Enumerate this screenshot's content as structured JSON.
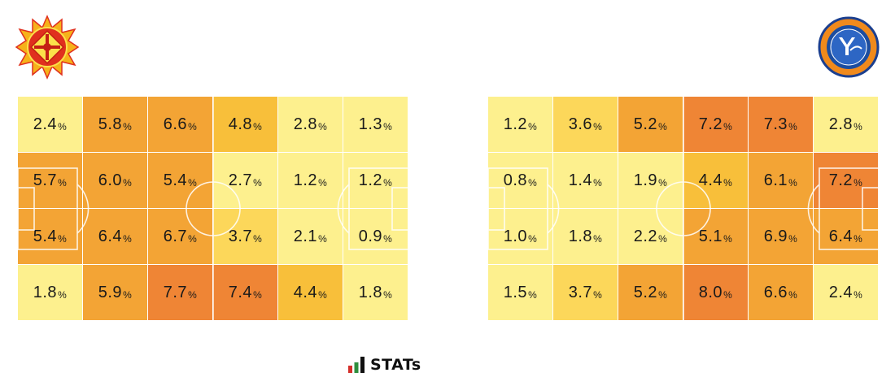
{
  "chart_data": [
    {
      "type": "heatmap",
      "team": "left",
      "unit": "%",
      "rows": 4,
      "cols": 6,
      "values": [
        [
          2.4,
          5.8,
          6.6,
          4.8,
          2.8,
          1.3
        ],
        [
          5.7,
          6.0,
          5.4,
          2.7,
          1.2,
          1.2
        ],
        [
          5.4,
          6.4,
          6.7,
          3.7,
          2.1,
          0.9
        ],
        [
          1.8,
          5.9,
          7.7,
          7.4,
          4.4,
          1.8
        ]
      ]
    },
    {
      "type": "heatmap",
      "team": "right",
      "unit": "%",
      "rows": 4,
      "cols": 6,
      "values": [
        [
          1.2,
          3.6,
          5.2,
          7.2,
          7.3,
          2.8
        ],
        [
          0.8,
          1.4,
          1.9,
          4.4,
          6.1,
          7.2
        ],
        [
          1.0,
          1.8,
          2.2,
          5.1,
          6.9,
          6.4
        ],
        [
          1.5,
          3.7,
          5.2,
          8.0,
          6.6,
          2.4
        ]
      ]
    }
  ],
  "colors": {
    "low": "#fdf08e",
    "mid_low": "#fcd75a",
    "mid": "#f8bf3a",
    "mid_high": "#f3a435",
    "high": "#ef8535"
  },
  "icons": {
    "left_logo": "team-crest-icon",
    "right_logo": "yscc-crest-icon",
    "brand_icon": "stats-bars-icon"
  },
  "brand": {
    "label": "STATs"
  }
}
